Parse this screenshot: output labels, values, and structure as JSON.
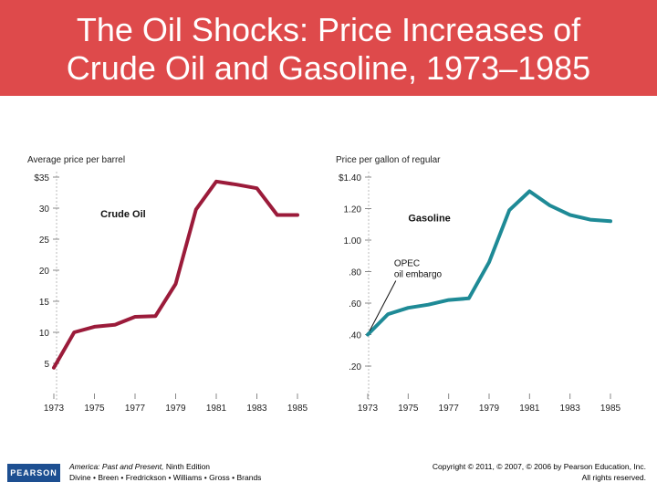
{
  "slide": {
    "title_line1": "The Oil Shocks:  Price Increases of",
    "title_line2": "Crude Oil and Gasoline, 1973–1985",
    "banner_color": "#de4a4b"
  },
  "chart_data": [
    {
      "type": "line",
      "title": "Crude Oil",
      "ylabel": "Average price per barrel",
      "ylim": [
        0,
        35
      ],
      "y_ticks": [
        5,
        10,
        15,
        20,
        25,
        30,
        35
      ],
      "y_tick_labels": [
        "5",
        "10",
        "15",
        "20",
        "25",
        "30",
        "$35"
      ],
      "x": [
        1973,
        1974,
        1975,
        1976,
        1977,
        1978,
        1979,
        1980,
        1981,
        1982,
        1983,
        1984,
        1985
      ],
      "x_tick_labels": [
        "1973",
        "1975",
        "1977",
        "1979",
        "1981",
        "1983",
        "1985"
      ],
      "series": [
        {
          "color": "#9b1b3a",
          "values": [
            4.3,
            10.0,
            10.9,
            11.2,
            12.5,
            12.6,
            17.8,
            29.8,
            34.3,
            33.8,
            33.2,
            28.9,
            28.9
          ]
        }
      ]
    },
    {
      "type": "line",
      "title": "Gasoline",
      "ylabel": "Price per gallon of regular",
      "ylim": [
        0.1,
        1.4
      ],
      "y_ticks": [
        0.2,
        0.4,
        0.6,
        0.8,
        1.0,
        1.2,
        1.4
      ],
      "y_tick_labels": [
        ".20",
        ".40",
        ".60",
        ".80",
        "1.00",
        "1.20",
        "$1.40"
      ],
      "x": [
        1973,
        1974,
        1975,
        1976,
        1977,
        1978,
        1979,
        1980,
        1981,
        1982,
        1983,
        1984,
        1985
      ],
      "x_tick_labels": [
        "1973",
        "1975",
        "1977",
        "1979",
        "1981",
        "1983",
        "1985"
      ],
      "series": [
        {
          "color": "#1e8a96",
          "values": [
            0.4,
            0.53,
            0.57,
            0.59,
            0.62,
            0.63,
            0.86,
            1.19,
            1.31,
            1.22,
            1.16,
            1.13,
            1.12
          ]
        }
      ],
      "annotation": {
        "text_line1": "OPEC",
        "text_line2": "oil embargo",
        "x": 1973,
        "y": 0.4
      }
    }
  ],
  "footer": {
    "logo_text": "PEARSON",
    "book_title": "America: Past and Present,",
    "edition": "Ninth Edition",
    "authors": "Divine • Breen • Fredrickson • Williams • Gross • Brands",
    "copyright": "Copyright © 2011, © 2007, © 2006 by Pearson Education, Inc.",
    "rights": "All rights reserved."
  }
}
